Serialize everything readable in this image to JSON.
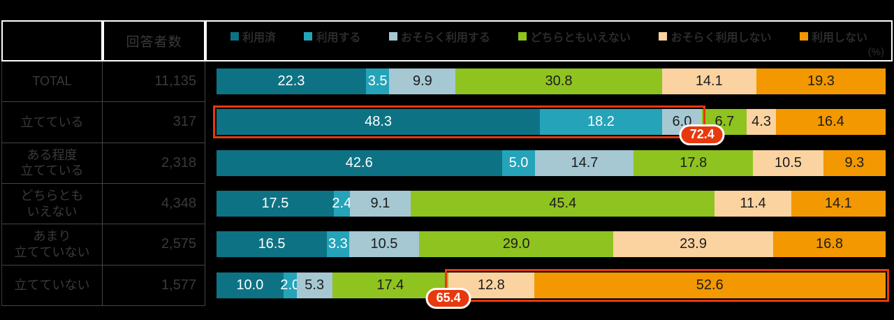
{
  "table": {
    "corner_label": "",
    "respondents_header": "回答者数",
    "unit_label": "(%)"
  },
  "colors": {
    "background": "#000000",
    "header_border": "#ffffff",
    "table_border": "#454545",
    "dim_text": "#3a3a3a",
    "highlight_red": "#e8380d",
    "callout_text": "#ffffff"
  },
  "chart_data": {
    "type": "bar",
    "orientation": "horizontal-stacked",
    "unit": "(%)",
    "legend_position": "top",
    "series_labels": [
      "利用済",
      "利用する",
      "おそらく利用する",
      "どちらともいえない",
      "おそらく利用しない",
      "利用しない"
    ],
    "series_colors": [
      "#0d7384",
      "#25a3b9",
      "#a5c8d2",
      "#8fc31f",
      "#fbd3a0",
      "#f39800"
    ],
    "series_text_colors": [
      "#ffffff",
      "#ffffff",
      "#1c1c1c",
      "#1c1c1c",
      "#1c1c1c",
      "#1c1c1c"
    ],
    "rows": [
      {
        "label_lines": [
          "TOTAL"
        ],
        "respondents": "11,135",
        "values": [
          22.3,
          3.5,
          9.9,
          30.8,
          14.1,
          19.3
        ]
      },
      {
        "label_lines": [
          "立てている"
        ],
        "respondents": "317",
        "values": [
          48.3,
          18.2,
          6.0,
          6.7,
          4.3,
          16.4
        ]
      },
      {
        "label_lines": [
          "ある程度",
          "立てている"
        ],
        "respondents": "2,318",
        "values": [
          42.6,
          5.0,
          14.7,
          17.8,
          10.5,
          9.3
        ]
      },
      {
        "label_lines": [
          "どちらとも",
          "いえない"
        ],
        "respondents": "4,348",
        "values": [
          17.5,
          2.4,
          9.1,
          45.4,
          11.4,
          14.1
        ]
      },
      {
        "label_lines": [
          "あまり",
          "立てていない"
        ],
        "respondents": "2,575",
        "values": [
          16.5,
          3.3,
          10.5,
          29.0,
          23.9,
          16.8
        ]
      },
      {
        "label_lines": [
          "立てていない"
        ],
        "respondents": "1,577",
        "values": [
          10.0,
          2.0,
          5.3,
          17.4,
          12.8,
          52.6
        ]
      }
    ],
    "highlights": [
      {
        "row_index": 1,
        "segment_from": 0,
        "segment_to": 2,
        "callout_value": "72.4",
        "anchor": "right"
      },
      {
        "row_index": 5,
        "segment_from": 4,
        "segment_to": 5,
        "callout_value": "65.4",
        "anchor": "left"
      }
    ]
  }
}
